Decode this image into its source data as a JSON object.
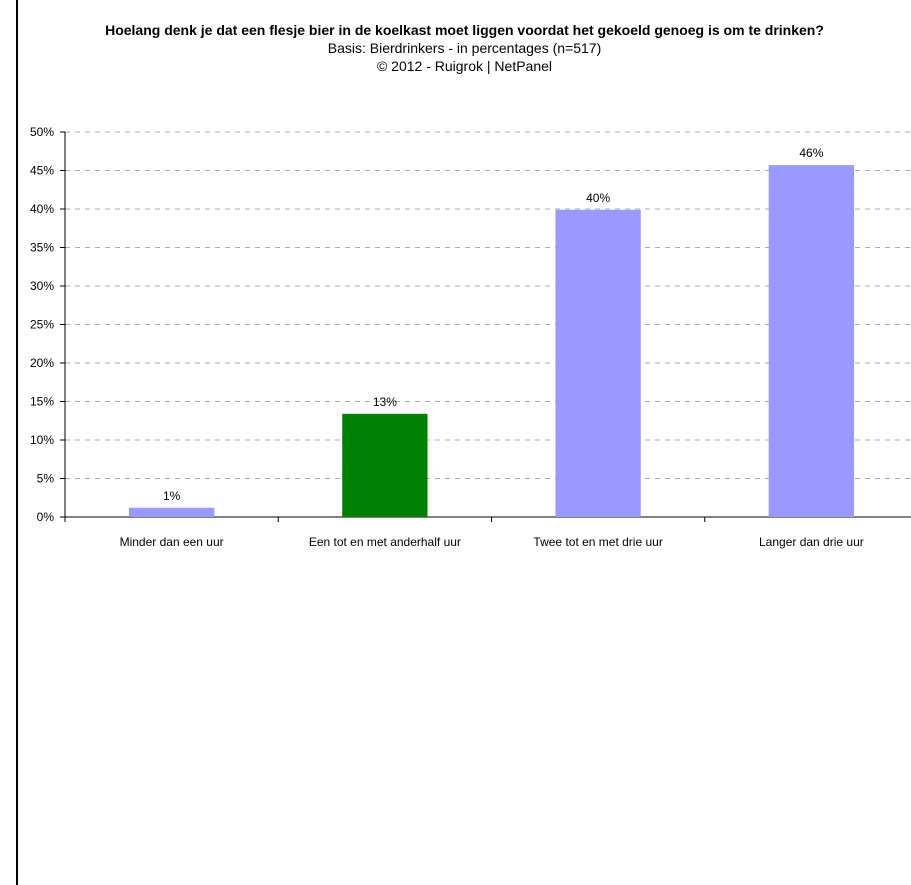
{
  "chart_data": {
    "type": "bar",
    "title": "Hoelang denk je dat een flesje bier in de koelkast moet liggen voordat het gekoeld genoeg is om te drinken?",
    "subtitle": "Basis: Bierdrinkers - in percentages (n=517)",
    "copyright": "©  2012 - Ruigrok | NetPanel",
    "categories": [
      "Minder dan een uur",
      "Een tot en met anderhalf uur",
      "Twee tot en met drie uur",
      "Langer dan drie uur"
    ],
    "values": [
      1.2,
      13.4,
      39.9,
      45.7
    ],
    "data_labels": [
      "1%",
      "13%",
      "40%",
      "46%"
    ],
    "bar_colors": [
      "#9999ff",
      "#008000",
      "#9999ff",
      "#9999ff"
    ],
    "ylim": [
      0,
      50
    ],
    "yticks": [
      0,
      5,
      10,
      15,
      20,
      25,
      30,
      35,
      40,
      45,
      50
    ],
    "ytick_labels": [
      "0%",
      "5%",
      "10%",
      "15%",
      "20%",
      "25%",
      "30%",
      "35%",
      "40%",
      "45%",
      "50%"
    ],
    "grid": true,
    "grid_color": "#aaaaaa",
    "xlabel": "",
    "ylabel": ""
  }
}
